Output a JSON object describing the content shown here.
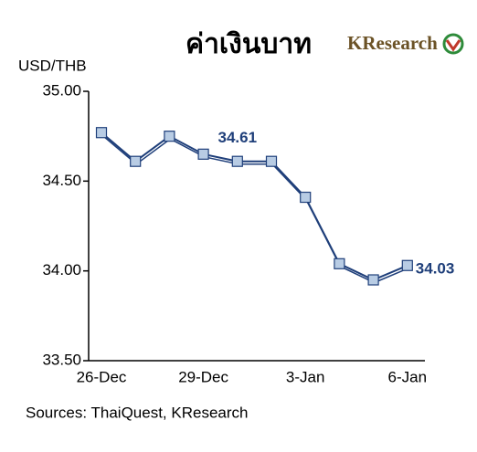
{
  "chart_data": {
    "type": "line",
    "title": "ค่าเงินบาท",
    "logo": "KResearch",
    "y_label": "USD/THB",
    "categories": [
      "26-Dec",
      null,
      null,
      "29-Dec",
      null,
      null,
      "3-Jan",
      null,
      null,
      "6-Jan"
    ],
    "values": [
      34.77,
      34.61,
      34.75,
      34.65,
      34.61,
      34.61,
      34.41,
      34.04,
      33.95,
      34.03
    ],
    "value_labels": [
      null,
      null,
      null,
      null,
      "34.61",
      null,
      null,
      null,
      null,
      "34.03"
    ],
    "color": "#1f3f7a",
    "marker_color": "#b8cce4",
    "ylim": [
      33.5,
      35
    ],
    "yticks": [
      {
        "value": 35,
        "label": "35.00"
      },
      {
        "value": 34.5,
        "label": "34.50"
      },
      {
        "value": 34,
        "label": "34.00"
      },
      {
        "value": 33.5,
        "label": "33.50"
      }
    ],
    "source": "Sources: ThaiQuest, KResearch"
  }
}
